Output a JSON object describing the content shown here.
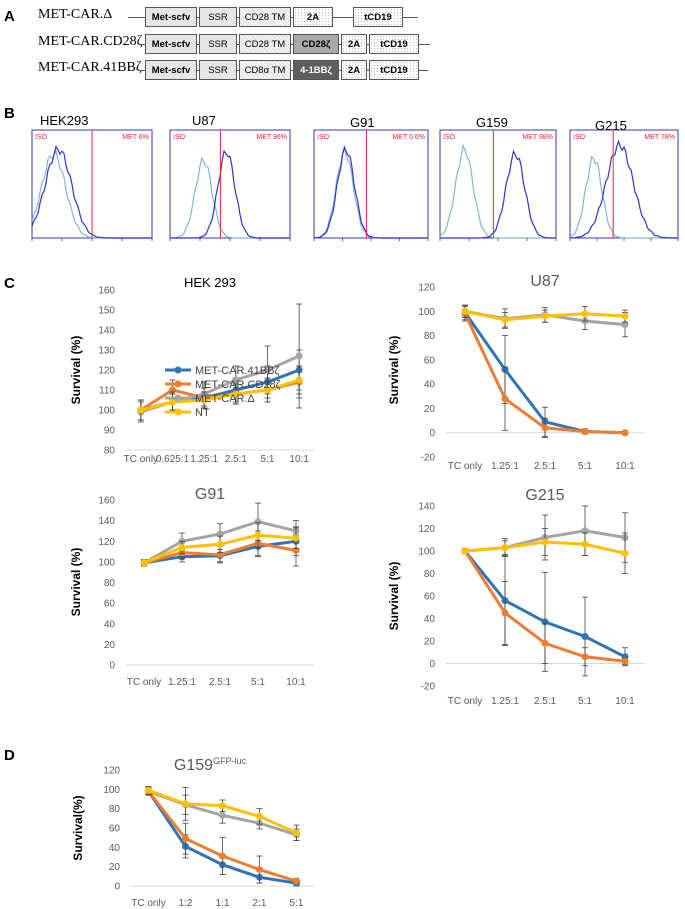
{
  "panel_labels": {
    "a": "A",
    "b": "B",
    "c": "C",
    "d": "D"
  },
  "constructs": [
    {
      "name": "MET-CAR.Δ",
      "segments": [
        "Met-scfv",
        "SSR",
        "CD28 TM",
        "2A",
        "tCD19"
      ]
    },
    {
      "name": "MET-CAR.CD28ζ",
      "segments": [
        "Met-scfv",
        "SSR",
        "CD28 TM",
        "CD28ζ",
        "2A",
        "tCD19"
      ]
    },
    {
      "name": "MET-CAR.41BBζ",
      "segments": [
        "Met-scfv",
        "SSR",
        "CD8α TM",
        "4-1BBζ",
        "2A",
        "tCD19"
      ]
    }
  ],
  "flow": [
    {
      "title": "HEK293",
      "iso": "ISO",
      "met": "MET 6%"
    },
    {
      "title": "U87",
      "iso": "ISO",
      "met": "MET 96%"
    },
    {
      "title": "G91",
      "iso": "ISO",
      "met": "MET 0.6%"
    },
    {
      "title": "G159",
      "iso": "ISO",
      "met": "MET 98%"
    },
    {
      "title": "G215",
      "iso": "ISO",
      "met": "MET 78%"
    }
  ],
  "colors": {
    "blue": "#2e75b6",
    "orange": "#ed7d31",
    "grey": "#a5a5a5",
    "yellow": "#ffc000",
    "iso": "#7fb8d6",
    "met": "#3333cc",
    "redline": "#e8263a"
  },
  "chart_data": [
    {
      "type": "line",
      "title": "HEK 293",
      "ylabel": "Survival (%)",
      "categories": [
        "TC only",
        "0.625:1",
        "1.25:1",
        "2.5:1",
        "5:1",
        "10:1"
      ],
      "yticks": [
        "80",
        "90",
        "100",
        "110",
        "120",
        "130",
        "140",
        "150",
        "160"
      ],
      "ylim": [
        80,
        160
      ],
      "legend": [
        "MET-CAR.41BBζ",
        "MET-CAR.CD28ζ",
        "MET-CAR.Δ",
        "NT"
      ],
      "series": [
        {
          "name": "MET-CAR.41BBζ",
          "values": [
            100,
            104,
            106,
            110,
            114,
            120
          ],
          "err": [
            5,
            4,
            5,
            6,
            8,
            10
          ]
        },
        {
          "name": "MET-CAR.CD28ζ",
          "values": [
            100,
            110,
            106,
            108,
            110,
            114
          ],
          "err": [
            5,
            5,
            5,
            5,
            6,
            8
          ]
        },
        {
          "name": "MET-CAR.Δ",
          "values": [
            99,
            104,
            108,
            115,
            120,
            127
          ],
          "err": [
            5,
            5,
            6,
            7,
            12,
            26
          ]
        },
        {
          "name": "NT",
          "values": [
            100,
            104,
            105,
            108,
            110,
            115
          ],
          "err": [
            5,
            4,
            4,
            5,
            6,
            7
          ]
        }
      ]
    },
    {
      "type": "line",
      "title": "U87",
      "ylabel": "Survival (%)",
      "categories": [
        "TC only",
        "1.25:1",
        "2.5:1",
        "5:1",
        "10:1"
      ],
      "yticks": [
        "-20",
        "0",
        "20",
        "40",
        "60",
        "80",
        "100",
        "120"
      ],
      "ylim": [
        -20,
        120
      ],
      "series": [
        {
          "name": "MET-CAR.41BBζ",
          "values": [
            99,
            52,
            9,
            1,
            0
          ],
          "err": [
            6,
            28,
            12,
            2,
            1
          ]
        },
        {
          "name": "MET-CAR.CD28ζ",
          "values": [
            98,
            28,
            4,
            1,
            0
          ],
          "err": [
            6,
            26,
            8,
            2,
            1
          ]
        },
        {
          "name": "MET-CAR.Δ",
          "values": [
            100,
            94,
            97,
            92,
            89
          ],
          "err": [
            5,
            8,
            6,
            7,
            10
          ]
        },
        {
          "name": "NT",
          "values": [
            100,
            93,
            96,
            98,
            96
          ],
          "err": [
            5,
            6,
            5,
            6,
            5
          ]
        }
      ]
    },
    {
      "type": "line",
      "title": "G91",
      "ylabel": "Survival (%)",
      "categories": [
        "TC only",
        "1.25:1",
        "2.5:1",
        "5:1",
        "10:1"
      ],
      "yticks": [
        "0",
        "20",
        "40",
        "60",
        "80",
        "100",
        "120",
        "140",
        "160"
      ],
      "ylim": [
        0,
        160
      ],
      "series": [
        {
          "name": "MET-CAR.41BBζ",
          "values": [
            99,
            105,
            106,
            115,
            120
          ],
          "err": [
            3,
            5,
            6,
            10,
            14
          ]
        },
        {
          "name": "MET-CAR.CD28ζ",
          "values": [
            99,
            109,
            107,
            118,
            111
          ],
          "err": [
            3,
            6,
            8,
            12,
            15
          ]
        },
        {
          "name": "MET-CAR.Δ",
          "values": [
            99,
            120,
            127,
            139,
            130
          ],
          "err": [
            3,
            8,
            10,
            18,
            10
          ]
        },
        {
          "name": "NT",
          "values": [
            99,
            114,
            117,
            126,
            123
          ],
          "err": [
            3,
            6,
            8,
            12,
            10
          ]
        }
      ]
    },
    {
      "type": "line",
      "title": "G215",
      "ylabel": "Survival (%)",
      "categories": [
        "TC only",
        "1.25:1",
        "2.5:1",
        "5:1",
        "10:1"
      ],
      "yticks": [
        "-20",
        "0",
        "20",
        "40",
        "60",
        "80",
        "100",
        "120",
        "140"
      ],
      "ylim": [
        -20,
        140
      ],
      "series": [
        {
          "name": "MET-CAR.41BBζ",
          "values": [
            100,
            56,
            37,
            24,
            6
          ],
          "err": [
            2,
            40,
            44,
            35,
            8
          ]
        },
        {
          "name": "MET-CAR.CD28ζ",
          "values": [
            100,
            45,
            18,
            6,
            2
          ],
          "err": [
            2,
            28,
            18,
            8,
            3
          ]
        },
        {
          "name": "MET-CAR.Δ",
          "values": [
            100,
            103,
            112,
            118,
            112
          ],
          "err": [
            2,
            8,
            20,
            22,
            22
          ]
        },
        {
          "name": "NT",
          "values": [
            100,
            103,
            108,
            106,
            98
          ],
          "err": [
            2,
            6,
            12,
            10,
            18
          ]
        }
      ]
    },
    {
      "type": "line",
      "title": "G159",
      "title_sup": "GFP-luc",
      "ylabel": "Survival(%)",
      "categories": [
        "TC only",
        "1:2",
        "1:1",
        "2:1",
        "5:1"
      ],
      "yticks": [
        "0",
        "20",
        "40",
        "60",
        "80",
        "100",
        "120"
      ],
      "ylim": [
        0,
        120
      ],
      "series": [
        {
          "name": "MET-CAR.41BBζ",
          "values": [
            98,
            41,
            22,
            9,
            3
          ],
          "err": [
            4,
            12,
            10,
            6,
            3
          ]
        },
        {
          "name": "MET-CAR.CD28ζ",
          "values": [
            98,
            49,
            31,
            17,
            5
          ],
          "err": [
            4,
            16,
            19,
            14,
            3
          ]
        },
        {
          "name": "MET-CAR.Δ",
          "values": [
            98,
            84,
            73,
            65,
            53
          ],
          "err": [
            4,
            10,
            8,
            6,
            6
          ]
        },
        {
          "name": "NT",
          "values": [
            99,
            85,
            83,
            72,
            55
          ],
          "err": [
            4,
            17,
            6,
            8,
            8
          ]
        }
      ]
    }
  ]
}
